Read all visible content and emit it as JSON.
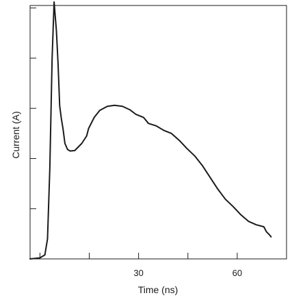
{
  "chart_data": {
    "type": "line",
    "title": "",
    "xlabel": "Time (ns)",
    "ylabel": "Current (A)",
    "xlim": [
      -3,
      75
    ],
    "ylim": [
      0,
      5.05
    ],
    "grid": false,
    "legend": "none",
    "x_ticks": [
      0,
      15,
      30,
      45,
      60,
      75
    ],
    "x_tick_labels": [
      "",
      "",
      "30",
      "",
      "60",
      ""
    ],
    "y_ticks": [
      1,
      2,
      3,
      4,
      5
    ],
    "series": [
      {
        "color": "#1a1a1a",
        "x": [
          -3,
          0,
          1.5,
          2.3,
          3.0,
          3.7,
          4.3,
          5.0,
          5.5,
          6.0,
          6.5,
          7.0,
          7.6,
          8.4,
          9.2,
          10.6,
          12.7,
          14.2,
          14.8,
          16.5,
          18.2,
          20.5,
          22.7,
          25.1,
          27.4,
          29.2,
          31.5,
          33.0,
          35.4,
          37.7,
          40.0,
          42.4,
          44.7,
          47.1,
          49.4,
          51.8,
          54.1,
          56.4,
          58.8,
          61.1,
          63.4,
          65.8,
          68.1,
          68.9,
          69.8,
          70.3
        ],
        "y": [
          0.0,
          0.02,
          0.08,
          0.4,
          1.8,
          4.0,
          5.12,
          4.55,
          3.9,
          3.05,
          2.8,
          2.6,
          2.3,
          2.18,
          2.15,
          2.16,
          2.3,
          2.45,
          2.6,
          2.82,
          2.96,
          3.04,
          3.06,
          3.04,
          2.97,
          2.88,
          2.82,
          2.7,
          2.65,
          2.56,
          2.5,
          2.36,
          2.2,
          2.05,
          1.86,
          1.62,
          1.39,
          1.19,
          1.04,
          0.88,
          0.75,
          0.68,
          0.64,
          0.54,
          0.48,
          0.44
        ]
      }
    ]
  }
}
